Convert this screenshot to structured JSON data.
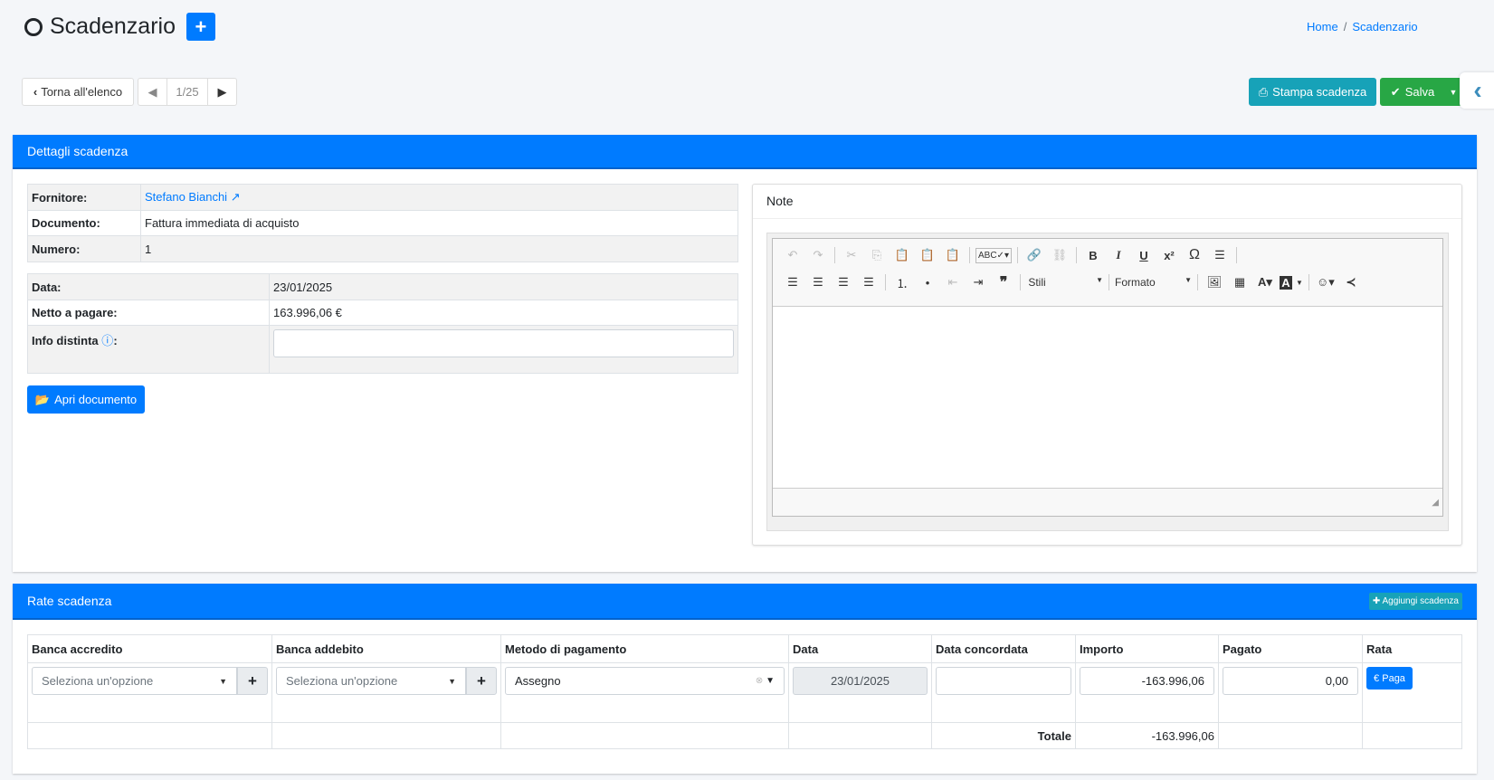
{
  "header": {
    "title": "Scadenzario",
    "add_label": "+",
    "breadcrumb": [
      "Home",
      "Scadenzario"
    ]
  },
  "toolbar": {
    "back_label": "Torna all'elenco",
    "pager": "1/25",
    "print_label": "Stampa scadenza",
    "save_label": "Salva"
  },
  "details": {
    "title": "Dettagli scadenza",
    "rows1": [
      {
        "label": "Fornitore:",
        "value": "Stefano Bianchi"
      },
      {
        "label": "Documento:",
        "value": "Fattura immediata di acquisto"
      },
      {
        "label": "Numero:",
        "value": "1"
      }
    ],
    "rows2": [
      {
        "label": "Data:",
        "value": "23/01/2025"
      },
      {
        "label": "Netto a pagare:",
        "value": "163.996,06 €"
      },
      {
        "label": "Info distinta",
        "value": ""
      }
    ],
    "open_doc_label": "Apri documento"
  },
  "note": {
    "title": "Note",
    "styles_label": "Stili",
    "format_label": "Formato"
  },
  "rate": {
    "title": "Rate scadenza",
    "add_label": "Aggiungi scadenza",
    "columns": [
      "Banca accredito",
      "Banca addebito",
      "Metodo di pagamento",
      "Data",
      "Data concordata",
      "Importo",
      "Pagato",
      "Rata"
    ],
    "row": {
      "banca_accredito": "Seleziona un'opzione",
      "banca_addebito": "Seleziona un'opzione",
      "metodo": "Assegno",
      "data": "23/01/2025",
      "data_concordata": "",
      "importo": "-163.996,06",
      "pagato": "0,00",
      "pay_label": "Paga"
    },
    "total_label": "Totale",
    "total_value": "-163.996,06"
  },
  "colors": {
    "primary": "#007bff",
    "info": "#17a2b8",
    "success": "#28a745"
  }
}
